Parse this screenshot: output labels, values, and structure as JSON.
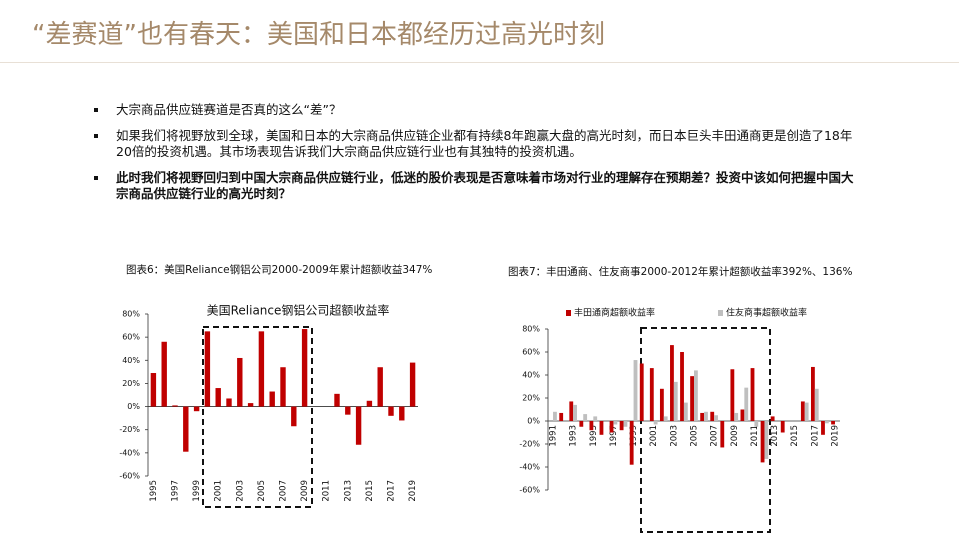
{
  "title": "“差赛道”也有春天：美国和日本都经历过高光时刻",
  "bullets": [
    "大宗商品供应链赛道是否真的这么“差”？",
    "如果我们将视野放到全球，美国和日本的大宗商品供应链企业都有持续8年跑赢大盘的高光时刻，而日本巨头丰田通商更是创造了18年20倍的投资机遇。其市场表现告诉我们大宗商品供应链行业也有其独特的投资机遇。",
    "此时我们将视野回归到中国大宗商品供应链行业，低迷的股价表现是否意味着市场对行业的理解存在预期差？投资中该如何把握中国大宗商品供应链行业的高光时刻？"
  ],
  "chart_data": [
    {
      "type": "bar",
      "caption": "图表6：美国Reliance钢铝公司2000-2009年累计超额收益347%",
      "title": "美国Reliance钢铝公司超额收益率",
      "categories": [
        "1995",
        null,
        "1997",
        null,
        "1999",
        null,
        "2001",
        null,
        "2003",
        null,
        "2005",
        null,
        "2007",
        null,
        "2009",
        null,
        "2011",
        null,
        "2013",
        null,
        "2015",
        null,
        "2017",
        null,
        "2019"
      ],
      "series": [
        {
          "name": null,
          "color": "#c00000",
          "values": [
            29,
            56,
            1,
            -39,
            -4,
            65,
            16,
            7,
            42,
            3,
            65,
            13,
            34,
            -17,
            67,
            0,
            0,
            11,
            -7,
            -33,
            5,
            34,
            -8,
            -12,
            38
          ]
        }
      ],
      "ylim": [
        -60,
        80
      ],
      "yticks": [
        {
          "value": -60,
          "label": "-60%"
        },
        {
          "value": -40,
          "label": "-40%"
        },
        {
          "value": -20,
          "label": "-20%"
        },
        {
          "value": 0,
          "label": "0%"
        },
        {
          "value": 20,
          "label": "20%"
        },
        {
          "value": 40,
          "label": "40%"
        },
        {
          "value": 60,
          "label": "60%"
        },
        {
          "value": 80,
          "label": "80%"
        }
      ]
    },
    {
      "type": "bar",
      "caption": "图表7：丰田通商、住友商事2000-2012年累计超额收益率392%、136%",
      "categories": [
        "1991",
        null,
        "1993",
        null,
        "1995",
        null,
        "1997",
        null,
        "1999",
        null,
        "2001",
        null,
        "2003",
        null,
        "2005",
        null,
        "2007",
        null,
        "2009",
        null,
        "2011",
        null,
        "2013",
        null,
        "2015",
        null,
        "2017",
        null,
        "2019"
      ],
      "series": [
        {
          "name": "丰田通商超额收益率",
          "color": "#c00000",
          "values": [
            0,
            7,
            17,
            -5,
            -8,
            -12,
            -10,
            -8,
            -38,
            50,
            46,
            28,
            66,
            60,
            39,
            7,
            8,
            -23,
            45,
            10,
            46,
            -36,
            4,
            -10,
            0,
            17,
            47,
            -12,
            -3
          ]
        },
        {
          "name": "住友商事超额收益率",
          "color": "#bfbfbf",
          "values": [
            8,
            0,
            14,
            6,
            4,
            0,
            -3,
            -5,
            53,
            0,
            -3,
            4,
            34,
            16,
            44,
            8,
            5,
            0,
            7,
            29,
            -5,
            -33,
            0,
            0,
            0,
            16,
            28,
            -2,
            0
          ]
        }
      ],
      "ylim": [
        -60,
        80
      ],
      "yticks": [
        {
          "value": -60,
          "label": "-60%"
        },
        {
          "value": -40,
          "label": "-40%"
        },
        {
          "value": -20,
          "label": "-20%"
        },
        {
          "value": 0,
          "label": "0%"
        },
        {
          "value": 20,
          "label": "20%"
        },
        {
          "value": 40,
          "label": "40%"
        },
        {
          "value": 60,
          "label": "60%"
        },
        {
          "value": 80,
          "label": "80%"
        }
      ]
    }
  ]
}
